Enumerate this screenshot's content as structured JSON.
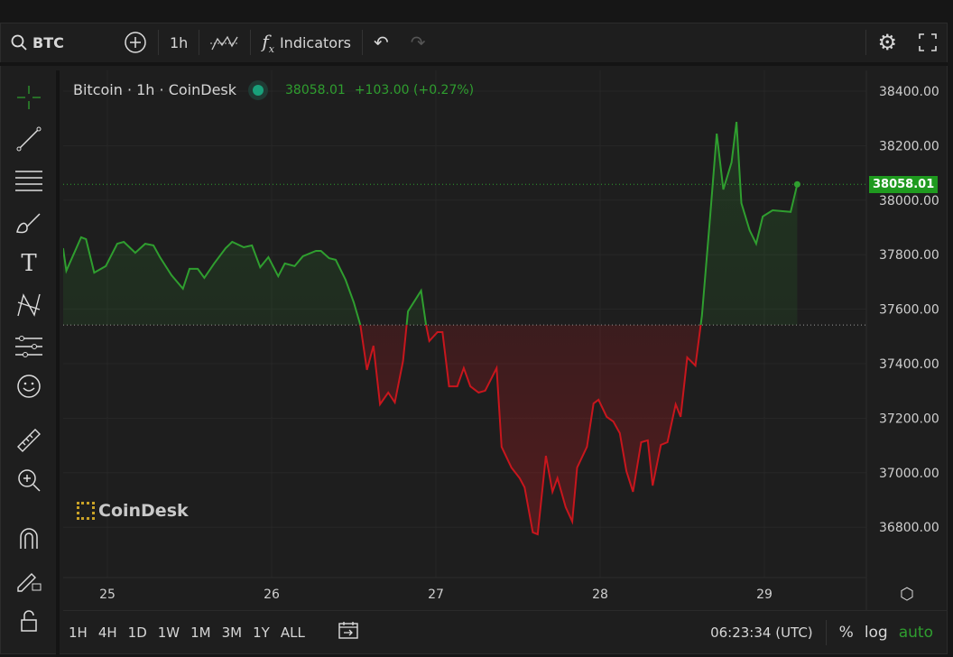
{
  "toolbar": {
    "symbol": "BTC",
    "interval": "1h",
    "indicators_label": "Indicators"
  },
  "legend": {
    "title": "Bitcoin · 1h · CoinDesk",
    "price": "38058.01",
    "change": "+103.00 (+0.27%)"
  },
  "watermark": "CoinDesk",
  "bottombar": {
    "ranges": [
      "1H",
      "4H",
      "1D",
      "1W",
      "1M",
      "3M",
      "1Y",
      "ALL"
    ],
    "clock": "06:23:34 (UTC)",
    "percent": "%",
    "log": "log",
    "auto": "auto"
  },
  "colors": {
    "up": "#2f9e2f",
    "down": "#c8161d",
    "background": "#1e1e1e",
    "last_price_tag": "#1f9a1f"
  },
  "icons": [
    "search-icon",
    "plus-circle-icon",
    "chart-type-icon",
    "function-icon",
    "undo-icon",
    "redo-icon",
    "gear-icon",
    "fullscreen-icon",
    "crosshair-icon",
    "trendline-icon",
    "horizontal-lines-icon",
    "brush-icon",
    "text-icon",
    "pattern-icon",
    "forecast-icon",
    "emoji-icon",
    "ruler-icon",
    "zoom-in-icon",
    "magnet-icon",
    "lock-pencil-icon",
    "lock-icon",
    "settings-hex-icon"
  ],
  "chart_data": {
    "type": "area",
    "title": "Bitcoin · 1h · CoinDesk",
    "xlabel": "",
    "ylabel": "",
    "x_ticks": [
      "25",
      "26",
      "27",
      "28",
      "29"
    ],
    "y_ticks": [
      "38400.00",
      "38200.00",
      "38000.00",
      "37800.00",
      "37600.00",
      "37400.00",
      "37200.00",
      "37000.00",
      "36800.00"
    ],
    "ylim": [
      36700,
      38450
    ],
    "xlim": [
      24.72,
      29.62
    ],
    "baseline": 37542,
    "last_price": "38058.01",
    "grid": true,
    "x": [
      24.73,
      24.75,
      24.84,
      24.87,
      24.92,
      24.99,
      25.06,
      25.1,
      25.17,
      25.23,
      25.28,
      25.32,
      25.39,
      25.46,
      25.5,
      25.55,
      25.59,
      25.65,
      25.72,
      25.76,
      25.83,
      25.88,
      25.93,
      25.98,
      26.04,
      26.08,
      26.14,
      26.19,
      26.27,
      26.3,
      26.35,
      26.39,
      26.45,
      26.5,
      26.54,
      26.58,
      26.62,
      26.66,
      26.71,
      26.75,
      26.8,
      26.83,
      26.91,
      26.94,
      26.96,
      27.01,
      27.04,
      27.08,
      27.13,
      27.17,
      27.21,
      27.26,
      27.3,
      27.37,
      27.4,
      27.46,
      27.51,
      27.54,
      27.59,
      27.62,
      27.67,
      27.71,
      27.74,
      27.79,
      27.83,
      27.86,
      27.92,
      27.96,
      27.99,
      28.04,
      28.08,
      28.12,
      28.16,
      28.2,
      28.25,
      28.29,
      28.32,
      28.37,
      28.41,
      28.46,
      28.49,
      28.53,
      28.58,
      28.62,
      28.67,
      28.71,
      28.75,
      28.8,
      28.83,
      28.86,
      28.91,
      28.95,
      28.99,
      29.05,
      29.16,
      29.2
    ],
    "y": [
      37824,
      37741,
      37864,
      37857,
      37734,
      37758,
      37840,
      37847,
      37807,
      37840,
      37834,
      37791,
      37725,
      37675,
      37748,
      37748,
      37715,
      37768,
      37824,
      37847,
      37827,
      37834,
      37754,
      37791,
      37721,
      37768,
      37758,
      37794,
      37814,
      37814,
      37787,
      37781,
      37708,
      37625,
      37542,
      37377,
      37466,
      37251,
      37294,
      37258,
      37410,
      37592,
      37668,
      37542,
      37483,
      37516,
      37516,
      37317,
      37317,
      37384,
      37317,
      37294,
      37301,
      37384,
      37095,
      37019,
      36980,
      36946,
      36781,
      36774,
      37062,
      36930,
      36980,
      36874,
      36821,
      37019,
      37095,
      37254,
      37268,
      37205,
      37188,
      37145,
      37006,
      36930,
      37112,
      37119,
      36953,
      37102,
      37112,
      37251,
      37205,
      37423,
      37393,
      37576,
      37940,
      38244,
      38039,
      38138,
      38287,
      37989,
      37890,
      37840,
      37940,
      37963,
      37957,
      38058.01
    ]
  }
}
